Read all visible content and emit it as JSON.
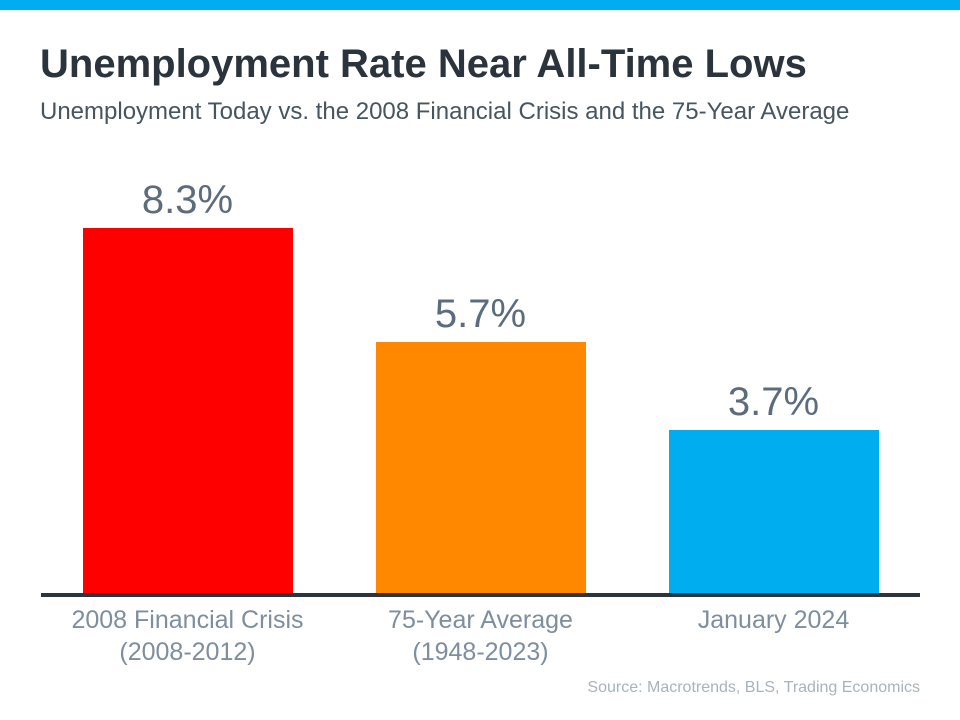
{
  "page": {
    "accent_color": "#00AEEF",
    "title": "Unemployment Rate Near All-Time Lows",
    "subtitle": "Unemployment Today vs. the 2008 Financial Crisis and the 75-Year Average",
    "source": "Source: Macrotrends, BLS, Trading Economics"
  },
  "chart_data": {
    "type": "bar",
    "title": "Unemployment Rate Near All-Time Lows",
    "subtitle": "Unemployment Today vs. the 2008 Financial Crisis and the 75-Year Average",
    "categories": [
      "2008 Financial Crisis (2008-2012)",
      "75-Year Average (1948-2023)",
      "January 2024"
    ],
    "category_lines": [
      [
        "2008 Financial Crisis",
        "(2008-2012)"
      ],
      [
        "75-Year Average",
        "(1948-2023)"
      ],
      [
        "January 2024"
      ]
    ],
    "values": [
      8.3,
      5.7,
      3.7
    ],
    "value_labels": [
      "8.3%",
      "5.7%",
      "3.7%"
    ],
    "bar_colors": [
      "#FF0000",
      "#FF8800",
      "#00AEEF"
    ],
    "xlabel": "",
    "ylabel": "",
    "ylim": [
      0,
      9
    ],
    "grid": false,
    "legend": false,
    "value_label_color": "#5C6C7C",
    "category_label_color": "#7E8E9E",
    "axis_color": "#2C343D",
    "source": "Source: Macrotrends, BLS, Trading Economics"
  }
}
